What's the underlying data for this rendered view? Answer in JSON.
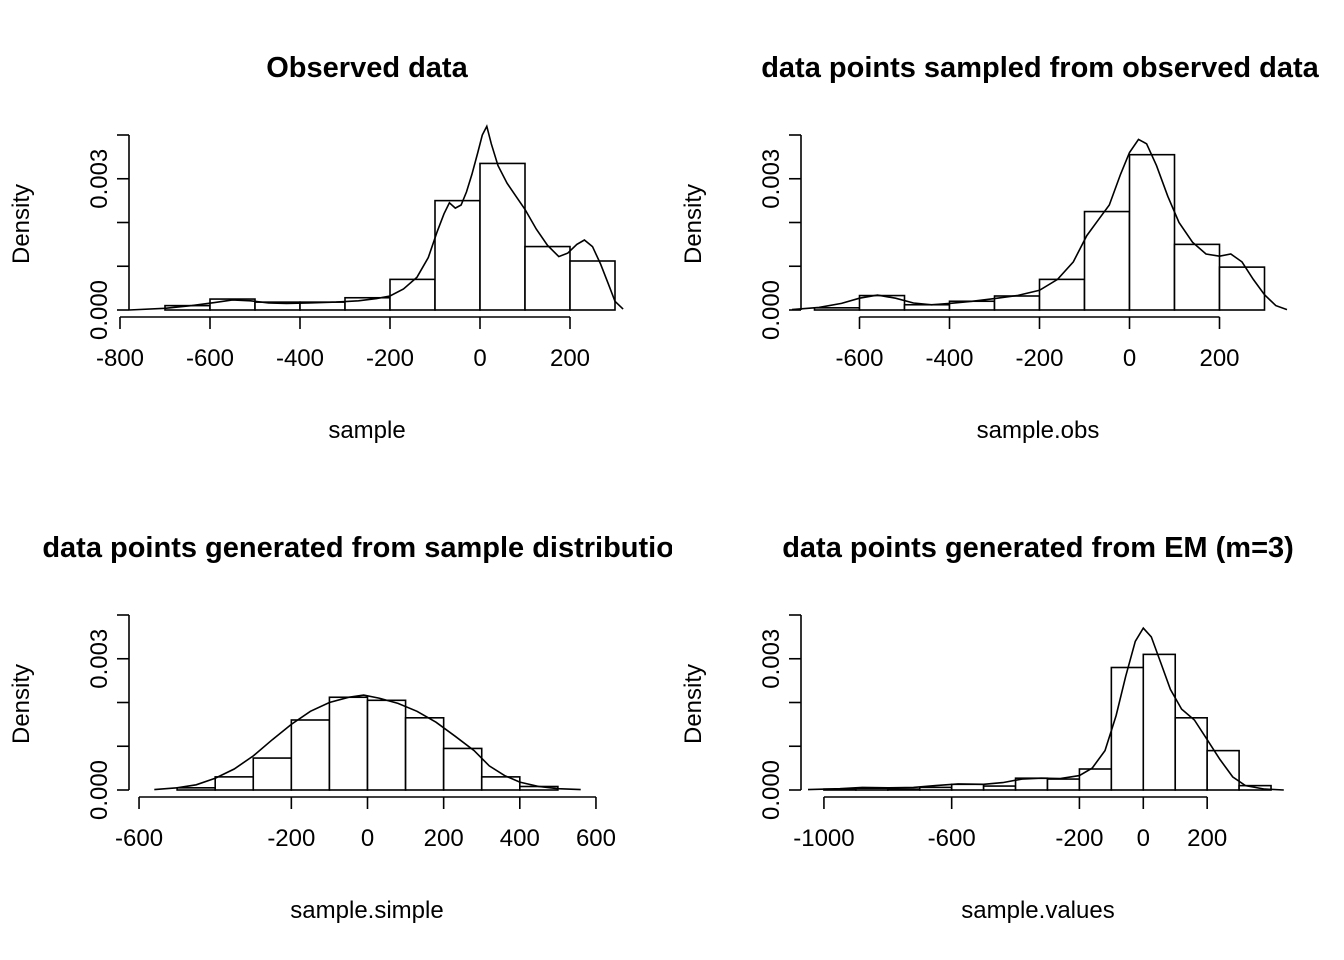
{
  "chart_data": [
    {
      "type": "histogram",
      "title": "Observed data",
      "xlabel": "sample",
      "ylabel": "Density",
      "xlim": [
        -800,
        300
      ],
      "ylim": [
        0,
        0.004
      ],
      "x_ticks": [
        -800,
        -600,
        -400,
        -200,
        0,
        200
      ],
      "y_ticks": [
        "0.000",
        "0.003"
      ],
      "bins": [
        {
          "from": -700,
          "to": -600,
          "density": 0.0001
        },
        {
          "from": -600,
          "to": -500,
          "density": 0.00025
        },
        {
          "from": -500,
          "to": -400,
          "density": 0.00018
        },
        {
          "from": -400,
          "to": -300,
          "density": 0.00018
        },
        {
          "from": -300,
          "to": -200,
          "density": 0.00028
        },
        {
          "from": -200,
          "to": -100,
          "density": 0.0007
        },
        {
          "from": -100,
          "to": 0,
          "density": 0.0025
        },
        {
          "from": 0,
          "to": 100,
          "density": 0.00335
        },
        {
          "from": 100,
          "to": 200,
          "density": 0.00145
        },
        {
          "from": 200,
          "to": 300,
          "density": 0.00112
        }
      ],
      "density_curve": [
        [
          -780,
          0
        ],
        [
          -700,
          4e-05
        ],
        [
          -640,
          0.0001
        ],
        [
          -590,
          0.00017
        ],
        [
          -550,
          0.00023
        ],
        [
          -510,
          0.00021
        ],
        [
          -470,
          0.00016
        ],
        [
          -430,
          0.00015
        ],
        [
          -380,
          0.00016
        ],
        [
          -320,
          0.00018
        ],
        [
          -270,
          0.00021
        ],
        [
          -230,
          0.00026
        ],
        [
          -200,
          0.00032
        ],
        [
          -170,
          0.00048
        ],
        [
          -140,
          0.00075
        ],
        [
          -115,
          0.0012
        ],
        [
          -95,
          0.0018
        ],
        [
          -80,
          0.0022
        ],
        [
          -68,
          0.00245
        ],
        [
          -55,
          0.00233
        ],
        [
          -42,
          0.0024
        ],
        [
          -30,
          0.0027
        ],
        [
          -18,
          0.0031
        ],
        [
          -5,
          0.0036
        ],
        [
          5,
          0.004
        ],
        [
          15,
          0.0042
        ],
        [
          25,
          0.0038
        ],
        [
          40,
          0.0033
        ],
        [
          60,
          0.0029
        ],
        [
          80,
          0.0026
        ],
        [
          100,
          0.0023
        ],
        [
          125,
          0.00185
        ],
        [
          150,
          0.00148
        ],
        [
          175,
          0.00122
        ],
        [
          195,
          0.0013
        ],
        [
          215,
          0.0015
        ],
        [
          232,
          0.0016
        ],
        [
          250,
          0.00145
        ],
        [
          268,
          0.00105
        ],
        [
          285,
          0.0006
        ],
        [
          300,
          0.0002
        ],
        [
          318,
          2e-05
        ]
      ]
    },
    {
      "type": "histogram",
      "title": "data points sampled from observed data",
      "xlabel": "sample.obs",
      "ylabel": "Density",
      "xlim": [
        -750,
        350
      ],
      "ylim": [
        0,
        0.004
      ],
      "x_ticks": [
        -600,
        -400,
        -200,
        0,
        200
      ],
      "y_ticks": [
        "0.000",
        "0.003"
      ],
      "bins": [
        {
          "from": -700,
          "to": -600,
          "density": 5e-05
        },
        {
          "from": -600,
          "to": -500,
          "density": 0.00033
        },
        {
          "from": -500,
          "to": -400,
          "density": 0.00012
        },
        {
          "from": -400,
          "to": -300,
          "density": 0.0002
        },
        {
          "from": -300,
          "to": -200,
          "density": 0.00032
        },
        {
          "from": -200,
          "to": -100,
          "density": 0.0007
        },
        {
          "from": -100,
          "to": 0,
          "density": 0.00225
        },
        {
          "from": 0,
          "to": 100,
          "density": 0.00355
        },
        {
          "from": 100,
          "to": 200,
          "density": 0.0015
        },
        {
          "from": 200,
          "to": 300,
          "density": 0.00098
        }
      ],
      "density_curve": [
        [
          -750,
          1e-05
        ],
        [
          -690,
          6e-05
        ],
        [
          -640,
          0.00015
        ],
        [
          -600,
          0.00027
        ],
        [
          -560,
          0.00034
        ],
        [
          -520,
          0.00027
        ],
        [
          -480,
          0.00016
        ],
        [
          -440,
          0.00012
        ],
        [
          -400,
          0.00015
        ],
        [
          -350,
          0.0002
        ],
        [
          -300,
          0.00026
        ],
        [
          -250,
          0.00033
        ],
        [
          -200,
          0.00045
        ],
        [
          -160,
          0.0007
        ],
        [
          -125,
          0.0011
        ],
        [
          -95,
          0.0017
        ],
        [
          -70,
          0.00205
        ],
        [
          -45,
          0.0024
        ],
        [
          -20,
          0.0031
        ],
        [
          0,
          0.0036
        ],
        [
          20,
          0.0039
        ],
        [
          38,
          0.0038
        ],
        [
          60,
          0.0033
        ],
        [
          85,
          0.0026
        ],
        [
          110,
          0.002
        ],
        [
          140,
          0.00155
        ],
        [
          170,
          0.00128
        ],
        [
          200,
          0.00123
        ],
        [
          225,
          0.00128
        ],
        [
          250,
          0.0011
        ],
        [
          275,
          0.0007
        ],
        [
          300,
          0.00035
        ],
        [
          325,
          0.0001
        ],
        [
          350,
          1e-05
        ]
      ]
    },
    {
      "type": "histogram",
      "title": "data points generated from sample distribution",
      "xlabel": "sample.simple",
      "ylabel": "Density",
      "xlim": [
        -650,
        650
      ],
      "ylim": [
        0,
        0.004
      ],
      "x_ticks": [
        -600,
        -200,
        0,
        200,
        400,
        600
      ],
      "y_ticks": [
        "0.000",
        "0.003"
      ],
      "bins": [
        {
          "from": -500,
          "to": -400,
          "density": 5e-05
        },
        {
          "from": -400,
          "to": -300,
          "density": 0.0003
        },
        {
          "from": -300,
          "to": -200,
          "density": 0.00073
        },
        {
          "from": -200,
          "to": -100,
          "density": 0.0016
        },
        {
          "from": -100,
          "to": 0,
          "density": 0.00212
        },
        {
          "from": 0,
          "to": 100,
          "density": 0.00205
        },
        {
          "from": 100,
          "to": 200,
          "density": 0.00165
        },
        {
          "from": 200,
          "to": 300,
          "density": 0.00095
        },
        {
          "from": 300,
          "to": 400,
          "density": 0.0003
        },
        {
          "from": 400,
          "to": 500,
          "density": 8e-05
        }
      ],
      "density_curve": [
        [
          -560,
          1e-05
        ],
        [
          -500,
          5e-05
        ],
        [
          -450,
          0.00012
        ],
        [
          -400,
          0.00027
        ],
        [
          -350,
          0.00048
        ],
        [
          -300,
          0.00078
        ],
        [
          -250,
          0.00115
        ],
        [
          -200,
          0.0015
        ],
        [
          -150,
          0.0018
        ],
        [
          -100,
          0.002
        ],
        [
          -50,
          0.00212
        ],
        [
          -10,
          0.00217
        ],
        [
          30,
          0.0021
        ],
        [
          80,
          0.00198
        ],
        [
          130,
          0.0018
        ],
        [
          180,
          0.00155
        ],
        [
          230,
          0.00123
        ],
        [
          280,
          0.0009
        ],
        [
          320,
          0.00055
        ],
        [
          360,
          0.00033
        ],
        [
          400,
          0.00018
        ],
        [
          450,
          8e-05
        ],
        [
          500,
          3e-05
        ],
        [
          560,
          1e-05
        ]
      ]
    },
    {
      "type": "histogram",
      "title": "data points generated from EM (m=3)",
      "xlabel": "sample.values",
      "ylabel": "Density",
      "xlim": [
        -1100,
        450
      ],
      "ylim": [
        0,
        0.004
      ],
      "x_ticks": [
        -1000,
        -600,
        -200,
        0,
        200
      ],
      "y_ticks": [
        "0.000",
        "0.003"
      ],
      "bins": [
        {
          "from": -1000,
          "to": -900,
          "density": 2e-05
        },
        {
          "from": -900,
          "to": -800,
          "density": 4e-05
        },
        {
          "from": -800,
          "to": -700,
          "density": 2e-05
        },
        {
          "from": -700,
          "to": -600,
          "density": 6e-05
        },
        {
          "from": -600,
          "to": -500,
          "density": 0.00013
        },
        {
          "from": -500,
          "to": -400,
          "density": 9e-05
        },
        {
          "from": -400,
          "to": -300,
          "density": 0.00027
        },
        {
          "from": -300,
          "to": -200,
          "density": 0.00025
        },
        {
          "from": -200,
          "to": -100,
          "density": 0.00048
        },
        {
          "from": -100,
          "to": 0,
          "density": 0.0028
        },
        {
          "from": 0,
          "to": 100,
          "density": 0.0031
        },
        {
          "from": 100,
          "to": 200,
          "density": 0.00165
        },
        {
          "from": 200,
          "to": 300,
          "density": 0.0009
        },
        {
          "from": 300,
          "to": 400,
          "density": 0.0001
        }
      ],
      "density_curve": [
        [
          -1050,
          1e-05
        ],
        [
          -950,
          3e-05
        ],
        [
          -880,
          6e-05
        ],
        [
          -800,
          5e-05
        ],
        [
          -720,
          6e-05
        ],
        [
          -650,
          0.0001
        ],
        [
          -580,
          0.00014
        ],
        [
          -500,
          0.00013
        ],
        [
          -440,
          0.00017
        ],
        [
          -380,
          0.00025
        ],
        [
          -320,
          0.00027
        ],
        [
          -260,
          0.00026
        ],
        [
          -200,
          0.00033
        ],
        [
          -160,
          0.0005
        ],
        [
          -120,
          0.0009
        ],
        [
          -85,
          0.0017
        ],
        [
          -55,
          0.0026
        ],
        [
          -25,
          0.0034
        ],
        [
          0,
          0.0037
        ],
        [
          25,
          0.0035
        ],
        [
          55,
          0.0029
        ],
        [
          85,
          0.0023
        ],
        [
          120,
          0.00185
        ],
        [
          160,
          0.0016
        ],
        [
          200,
          0.00115
        ],
        [
          240,
          0.0007
        ],
        [
          280,
          0.0003
        ],
        [
          320,
          0.0001
        ],
        [
          380,
          2e-05
        ],
        [
          440,
          0
        ]
      ]
    }
  ]
}
